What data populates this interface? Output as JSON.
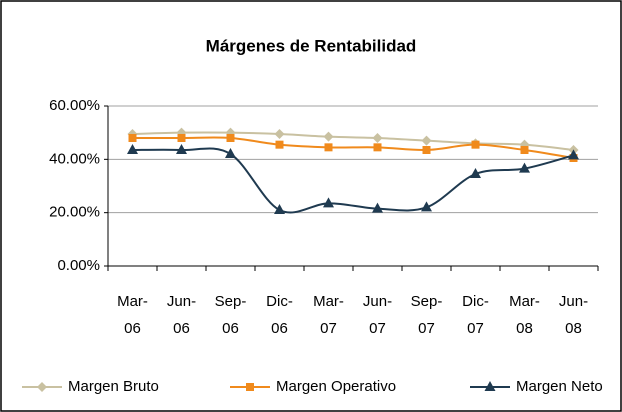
{
  "chart_data": {
    "type": "line",
    "title": "Márgenes de Rentabilidad",
    "categories": [
      "Mar-06",
      "Jun-06",
      "Sep-06",
      "Dic-06",
      "Mar-07",
      "Jun-07",
      "Sep-07",
      "Dic-07",
      "Mar-08",
      "Jun-08"
    ],
    "series": [
      {
        "name": "Margen Bruto",
        "color": "#c9c1a1",
        "marker": "diamond",
        "values": [
          49.5,
          50,
          50,
          49.5,
          48.5,
          48,
          47,
          46,
          45.5,
          43.5
        ]
      },
      {
        "name": "Margen Operativo",
        "color": "#f08a1c",
        "marker": "square",
        "values": [
          48,
          48,
          48,
          45.5,
          44.5,
          44.5,
          43.5,
          45.5,
          43.5,
          40.5
        ]
      },
      {
        "name": "Margen Neto",
        "color": "#1f3a50",
        "marker": "triangle",
        "values": [
          43.5,
          43.5,
          42,
          21,
          23.5,
          21.5,
          22,
          34.5,
          36.5,
          41.5
        ]
      }
    ],
    "ylim": [
      0,
      60
    ],
    "yticks": [
      {
        "value": 0,
        "label": "0.00%"
      },
      {
        "value": 20,
        "label": "20.00%"
      },
      {
        "value": 40,
        "label": "40.00%"
      },
      {
        "value": 60,
        "label": "60.00%"
      }
    ],
    "grid": true,
    "legend": "bottom"
  }
}
